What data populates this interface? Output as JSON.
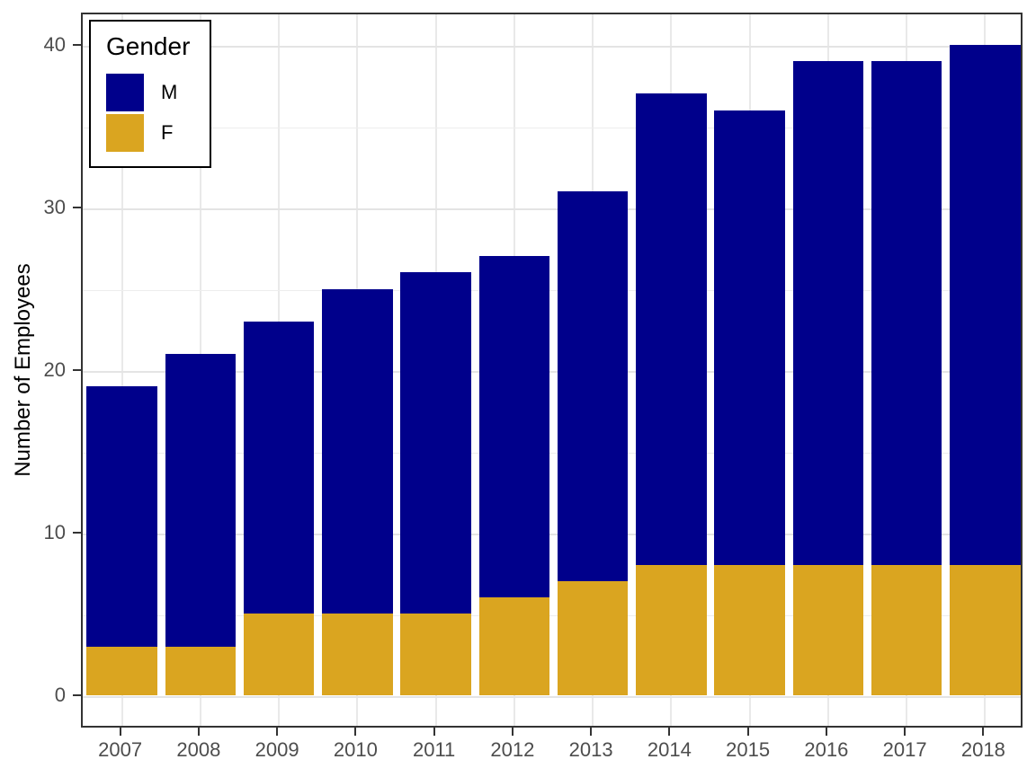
{
  "chart_data": {
    "type": "bar",
    "stacked": true,
    "title": "",
    "xlabel": "",
    "ylabel": "Number of Employees",
    "categories": [
      "2007",
      "2008",
      "2009",
      "2010",
      "2011",
      "2012",
      "2013",
      "2014",
      "2015",
      "2016",
      "2017",
      "2018"
    ],
    "series": [
      {
        "name": "M",
        "color": "#00008B",
        "values": [
          16,
          18,
          18,
          20,
          21,
          21,
          24,
          29,
          28,
          31,
          31,
          32
        ]
      },
      {
        "name": "F",
        "color": "#DAA520",
        "values": [
          3,
          3,
          5,
          5,
          5,
          6,
          7,
          8,
          8,
          8,
          8,
          8
        ]
      }
    ],
    "totals": [
      19,
      21,
      23,
      25,
      26,
      27,
      31,
      37,
      36,
      39,
      39,
      40
    ],
    "ylim": [
      -2,
      42
    ],
    "y_major_ticks": [
      0,
      10,
      20,
      30,
      40
    ],
    "y_minor_gridlines": [
      5,
      15,
      25,
      35
    ],
    "grid": true,
    "legend": {
      "title": "Gender",
      "position": "top-left-inside",
      "items": [
        {
          "label": "M",
          "color": "#00008B"
        },
        {
          "label": "F",
          "color": "#DAA520"
        }
      ]
    },
    "colors": {
      "male_bar": "#00008B",
      "female_bar": "#DAA520",
      "panel_border": "#333333",
      "gridline": "#e6e6e6",
      "tick_label": "#4d4d4d"
    }
  }
}
